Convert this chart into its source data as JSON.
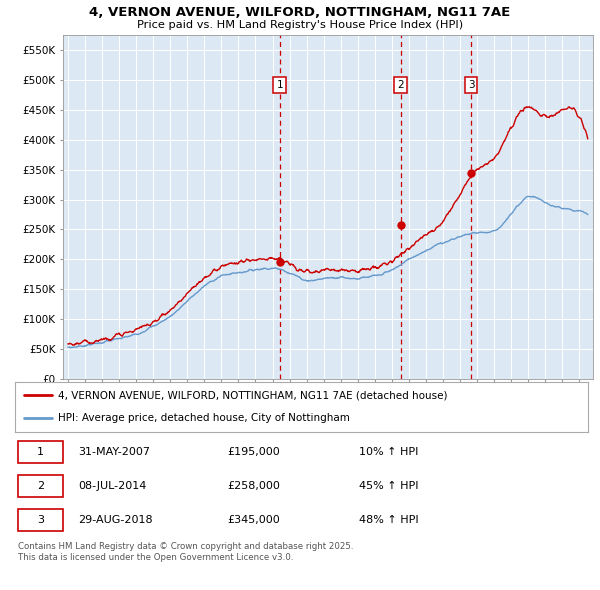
{
  "title": "4, VERNON AVENUE, WILFORD, NOTTINGHAM, NG11 7AE",
  "subtitle": "Price paid vs. HM Land Registry's House Price Index (HPI)",
  "background_color": "#dce9f5",
  "plot_bg_color": "#dce9f5",
  "yticks": [
    0,
    50000,
    100000,
    150000,
    200000,
    250000,
    300000,
    350000,
    400000,
    450000,
    500000,
    550000
  ],
  "ylim": [
    0,
    575000
  ],
  "xlim_start": 1994.7,
  "xlim_end": 2025.8,
  "sale_dates": [
    2007.42,
    2014.52,
    2018.66
  ],
  "sale_prices": [
    195000,
    258000,
    345000
  ],
  "sale_labels": [
    "1",
    "2",
    "3"
  ],
  "vline_color": "#cc0000",
  "sale_marker_color": "#cc0000",
  "legend_line_colors": [
    "#cc0000",
    "#6699cc"
  ],
  "legend_entries": [
    "4, VERNON AVENUE, WILFORD, NOTTINGHAM, NG11 7AE (detached house)",
    "HPI: Average price, detached house, City of Nottingham"
  ],
  "table_rows": [
    [
      "1",
      "31-MAY-2007",
      "£195,000",
      "10% ↑ HPI"
    ],
    [
      "2",
      "08-JUL-2014",
      "£258,000",
      "45% ↑ HPI"
    ],
    [
      "3",
      "29-AUG-2018",
      "£345,000",
      "48% ↑ HPI"
    ]
  ],
  "footer": "Contains HM Land Registry data © Crown copyright and database right 2025.\nThis data is licensed under the Open Government Licence v3.0.",
  "hpi_years": [
    1995,
    1996,
    1997,
    1998,
    1999,
    2000,
    2001,
    2002,
    2003,
    2004,
    2005,
    2006,
    2007,
    2008,
    2009,
    2010,
    2011,
    2012,
    2013,
    2014,
    2015,
    2016,
    2017,
    2018,
    2019,
    2020,
    2021,
    2022,
    2023,
    2024,
    2025
  ],
  "hpi_values": [
    52000,
    56000,
    61000,
    67000,
    75000,
    88000,
    105000,
    130000,
    155000,
    172000,
    178000,
    183000,
    185000,
    178000,
    165000,
    168000,
    170000,
    168000,
    172000,
    182000,
    200000,
    215000,
    228000,
    238000,
    245000,
    248000,
    275000,
    305000,
    295000,
    285000,
    280000
  ],
  "prop_years": [
    1995,
    1996,
    1997,
    1998,
    1999,
    2000,
    2001,
    2002,
    2003,
    2004,
    2005,
    2006,
    2007,
    2008,
    2009,
    2010,
    2011,
    2012,
    2013,
    2014,
    2015,
    2016,
    2017,
    2018,
    2019,
    2020,
    2021,
    2022,
    2023,
    2024,
    2025
  ],
  "prop_values": [
    57000,
    61000,
    66000,
    73000,
    82000,
    96000,
    115000,
    142000,
    168000,
    188000,
    195000,
    200000,
    202000,
    192000,
    178000,
    182000,
    183000,
    181000,
    186000,
    197000,
    220000,
    240000,
    265000,
    310000,
    350000,
    370000,
    420000,
    455000,
    440000,
    450000,
    440000
  ]
}
